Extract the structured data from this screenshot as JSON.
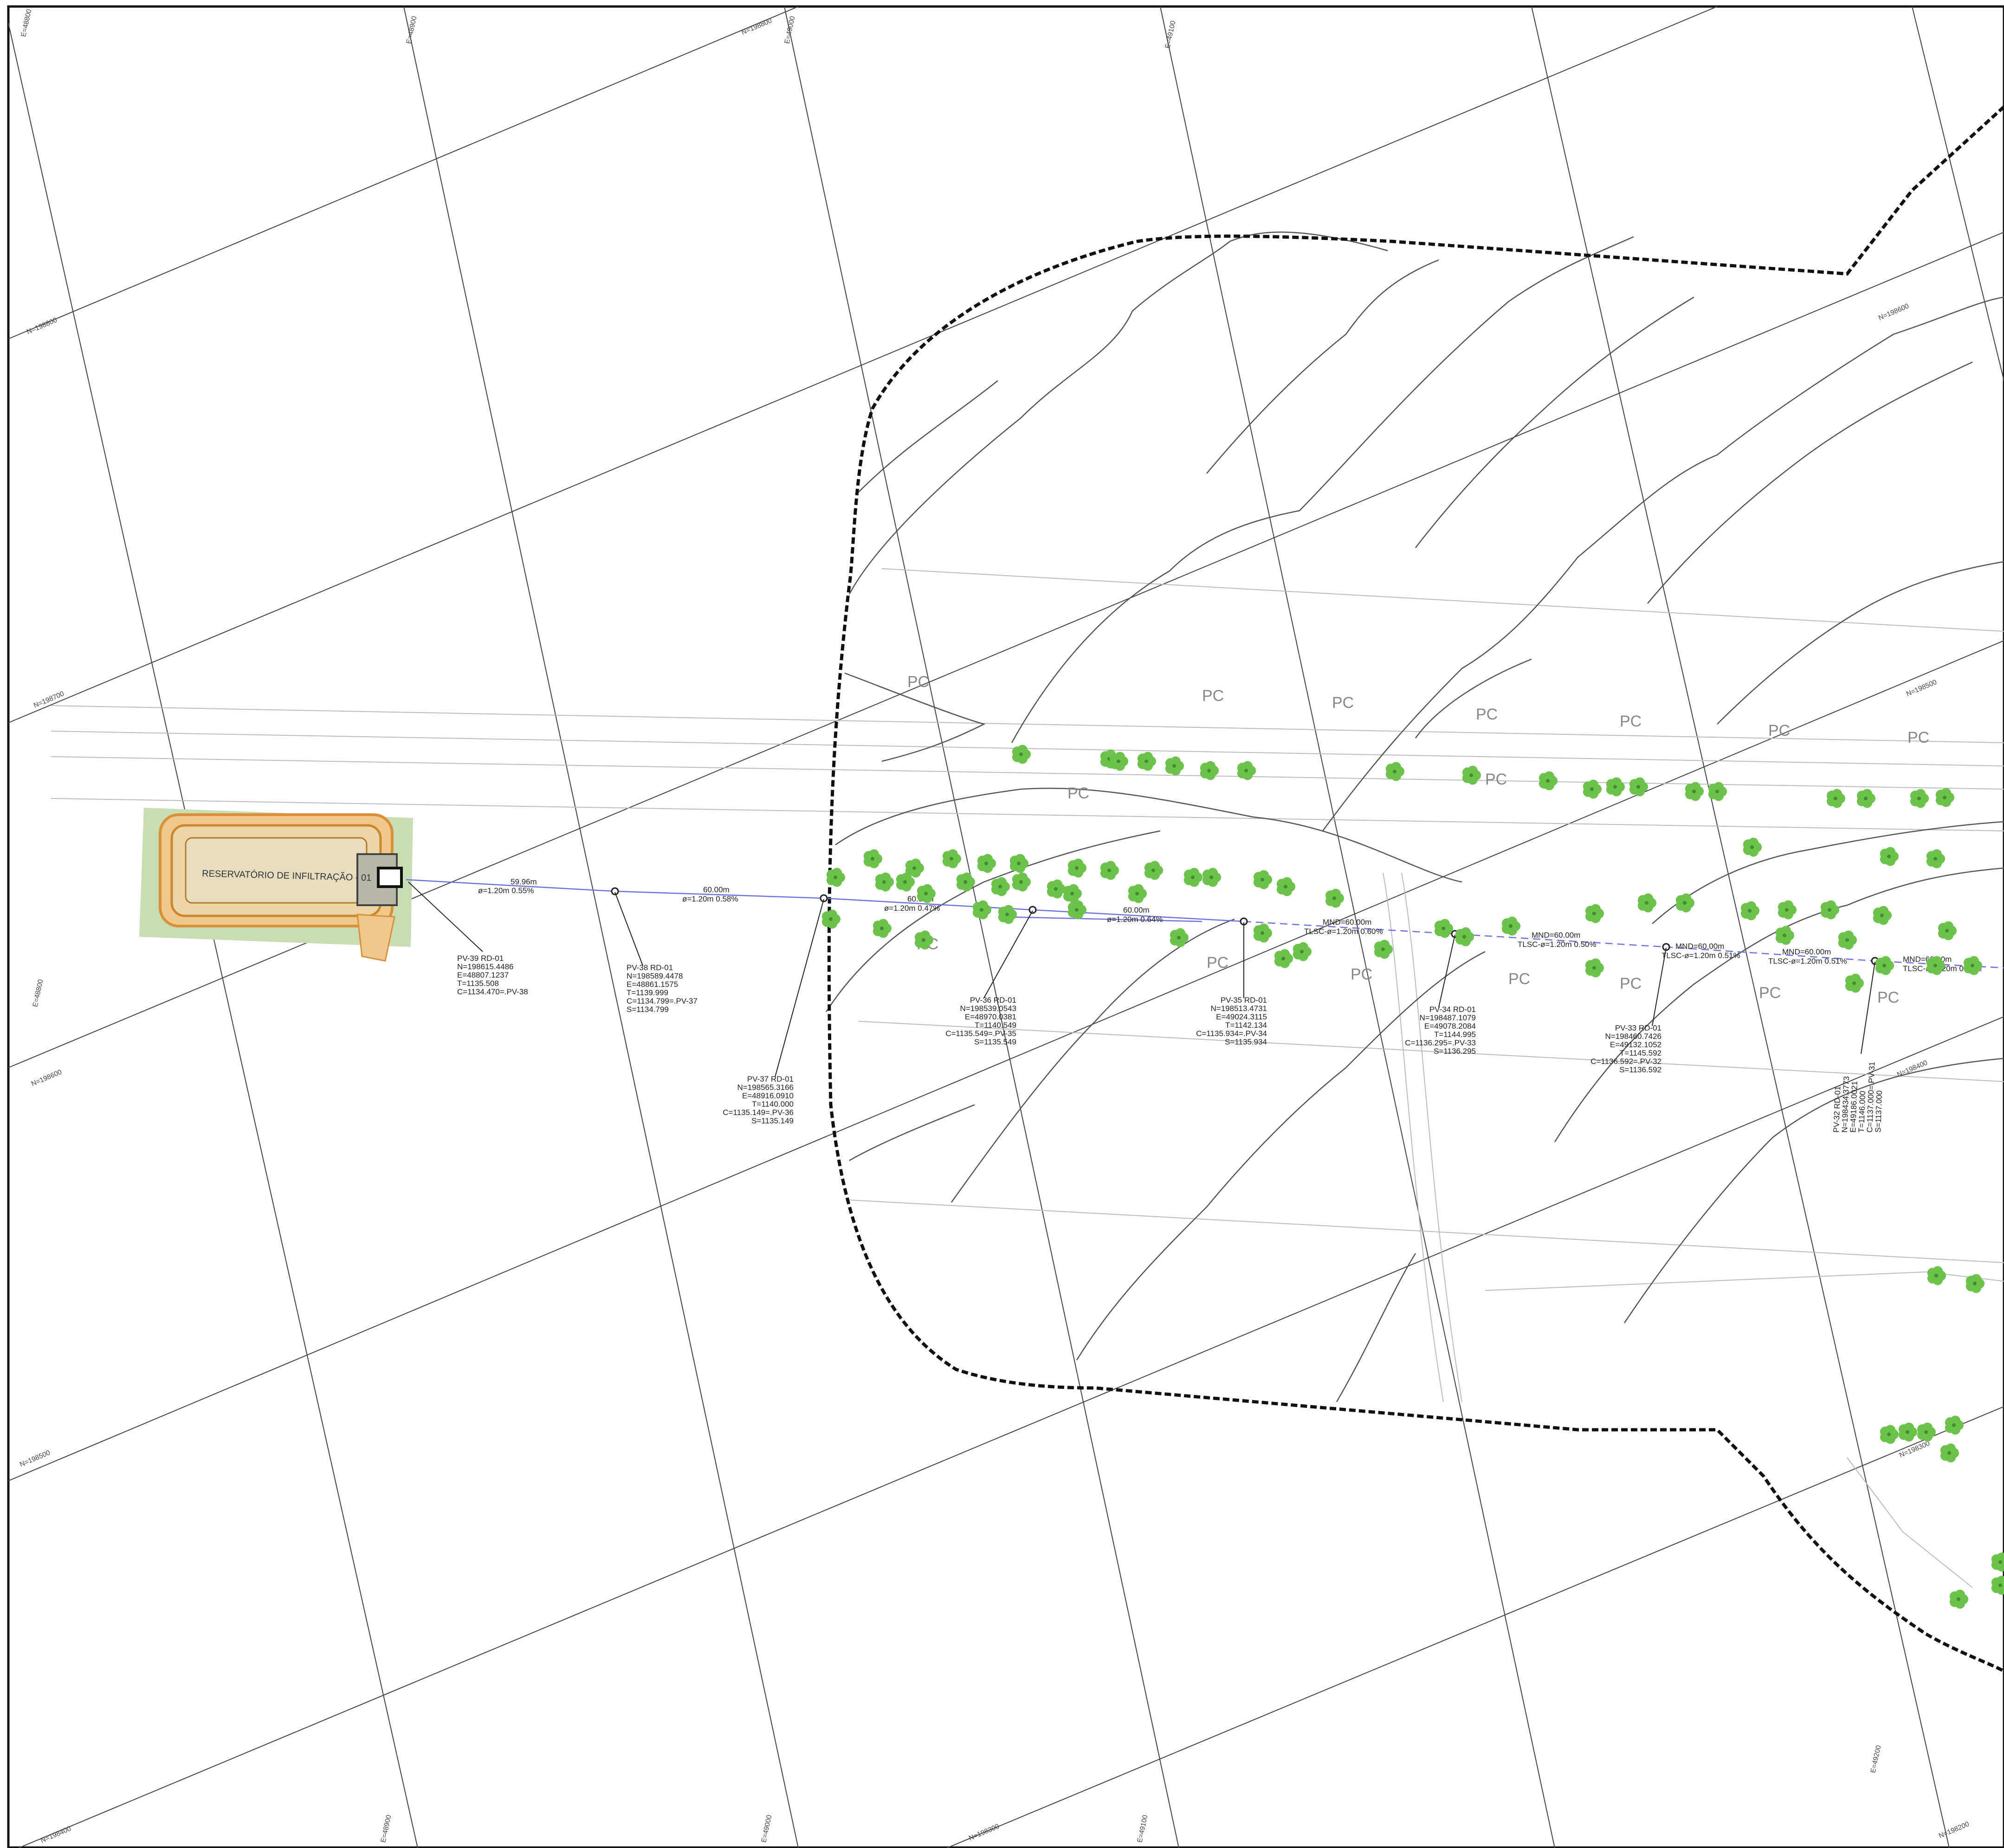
{
  "colors": {
    "background": "#ffffff",
    "grid": "#444444",
    "boundary": "#111111",
    "pipe": "#6e6ee0",
    "tree": "#6cc24a",
    "reservoir_ground": "#c9dcb3",
    "reservoir_border": "#e0a24a",
    "reservoir_fill": "#e6dcc0"
  },
  "reservoir": {
    "label": "RESERVATÓRIO DE INFILTRAÇÃO - 01"
  },
  "grid_labels": {
    "north": [
      "N=198800",
      "N=198700",
      "N=198600",
      "N=198500",
      "N=198400",
      "N=198300",
      "N=198600",
      "N=198500",
      "N=198400",
      "N=198300",
      "N=198200"
    ],
    "east": [
      "E=48800",
      "E=48900",
      "E=49000",
      "E=49100",
      "E=48800",
      "E=48900",
      "E=49000",
      "E=49100",
      "E=49200"
    ]
  },
  "land_use_labels": [
    "PC",
    "PC",
    "PC",
    "PC",
    "PC",
    "PC",
    "PC",
    "PC",
    "PC",
    "PC",
    "PC",
    "PC",
    "PC",
    "PC",
    "PC",
    "PC"
  ],
  "segments": [
    {
      "length": "59.96m",
      "spec": "ø=1.20m  0.55%"
    },
    {
      "length": "60.00m",
      "spec": "ø=1.20m  0.58%"
    },
    {
      "length": "60.00m",
      "spec": "ø=1.20m  0.47%"
    },
    {
      "length": "60.00m",
      "spec": "ø=1.20m  0.64%"
    },
    {
      "length": "MND=60.00m",
      "spec": "TLSC-ø=1.20m  0.60%"
    },
    {
      "length": "MND=60.00m",
      "spec": "TLSC-ø=1.20m  0.50%"
    },
    {
      "length": "MND=60.00m",
      "spec": "TLSC-ø=1.20m  0.51%"
    },
    {
      "length": "MND=60.00m",
      "spec": "TLSC-ø=1.20m  0.51%"
    },
    {
      "length": "MND=60.00m",
      "spec": "TLSC-ø=1.20m  0.71%"
    }
  ],
  "manholes": [
    {
      "lines": [
        "PV-39  RD-01",
        "N=198615.4486",
        "E=48807.1237",
        "T=1135.508",
        "C=1134.470=.PV-38"
      ]
    },
    {
      "lines": [
        "PV-38  RD-01",
        "N=198589.4478",
        "E=48861.1575",
        "T=1139.999",
        "C=1134.799=.PV-37",
        "S=1134.799"
      ]
    },
    {
      "lines": [
        "PV-37  RD-01",
        "N=198565.3166",
        "E=48916.0910",
        "T=1140.000",
        "C=1135.149=.PV-36",
        "S=1135.149"
      ]
    },
    {
      "lines": [
        "PV-36  RD-01",
        "N=198539.0543",
        "E=48970.0381",
        "T=1140.549",
        "C=1135.549=.PV-35",
        "S=1135.549"
      ]
    },
    {
      "lines": [
        "PV-35  RD-01",
        "N=198513.4731",
        "E=49024.3115",
        "T=1142.134",
        "C=1135.934=.PV-34",
        "S=1135.934"
      ]
    },
    {
      "lines": [
        "PV-34  RD-01",
        "N=198487.1079",
        "E=49078.2084",
        "T=1144.995",
        "C=1136.295=.PV-33",
        "S=1136.295"
      ]
    },
    {
      "lines": [
        "PV-33  RD-01",
        "N=198460.7426",
        "E=49132.1052",
        "T=1145.592",
        "C=1136.592=.PV-32",
        "S=1136.592"
      ]
    },
    {
      "lines": [
        "PV-32  RD-01",
        "N=198434.3773",
        "E=49186.0021",
        "T=1146.000",
        "C=1137.000=.PV-31",
        "S=1137.000"
      ]
    }
  ]
}
